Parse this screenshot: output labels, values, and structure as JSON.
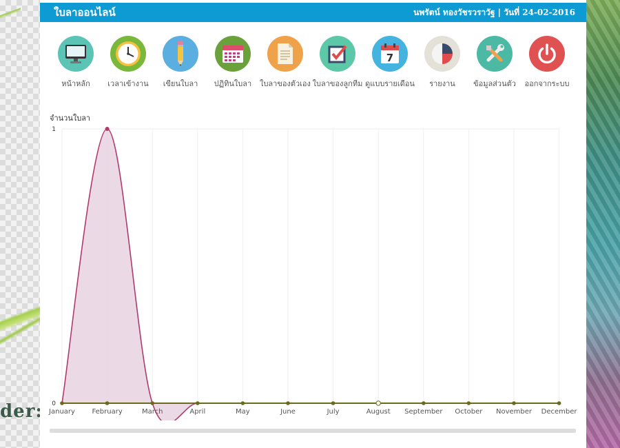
{
  "header": {
    "app_title": "ใบลาออนไลน์",
    "user_info": "นพรัตน์ ทองวัชรวราวัฐ | วันที่ 24-02-2016",
    "color": "#0e9ad3"
  },
  "toolbar": {
    "items": [
      {
        "label": "หน้าหลัก",
        "icon": "monitor-icon",
        "color": "#5bc4b4"
      },
      {
        "label": "เวลาเข้างาน",
        "icon": "clock-icon",
        "color": "#7ab83c"
      },
      {
        "label": "เขียนใบลา",
        "icon": "pencil-icon",
        "color": "#5aaee0"
      },
      {
        "label": "ปฏิทินใบลา",
        "icon": "calendar-icon",
        "color": "#6aa13a"
      },
      {
        "label": "ใบลาของตัวเอง",
        "icon": "document-icon",
        "color": "#f0a24a"
      },
      {
        "label": "ใบลาของลูกทีม",
        "icon": "checkbox-icon",
        "color": "#5cc8a8"
      },
      {
        "label": "ดูแบบรายเดือน",
        "icon": "calendar-7-icon",
        "color": "#45b3e0"
      },
      {
        "label": "รายงาน",
        "icon": "pie-chart-icon",
        "color": "#e4e1d8"
      },
      {
        "label": "ข้อมูลส่วนตัว",
        "icon": "tools-icon",
        "color": "#4cb9a4"
      },
      {
        "label": "ออกจากระบบ",
        "icon": "power-icon",
        "color": "#e05151"
      }
    ]
  },
  "chart_title": "จำนวนใบลา",
  "chart_data": {
    "type": "area",
    "title": "จำนวนใบลา",
    "categories": [
      "January",
      "February",
      "March",
      "April",
      "May",
      "June",
      "July",
      "August",
      "September",
      "October",
      "November",
      "December"
    ],
    "series": [
      {
        "values": [
          0,
          1,
          0,
          0,
          0,
          0,
          0,
          0,
          0,
          0,
          0,
          0
        ],
        "color": "#b03a6e",
        "fill": "#e8d2e0"
      },
      {
        "values": [
          0,
          0,
          0,
          0,
          0,
          0,
          0,
          0,
          0,
          0,
          0,
          0
        ],
        "color": "#6a6a1a"
      }
    ],
    "yticks": [
      "0",
      "1"
    ],
    "ylim": [
      0,
      1
    ],
    "grid": true
  }
}
